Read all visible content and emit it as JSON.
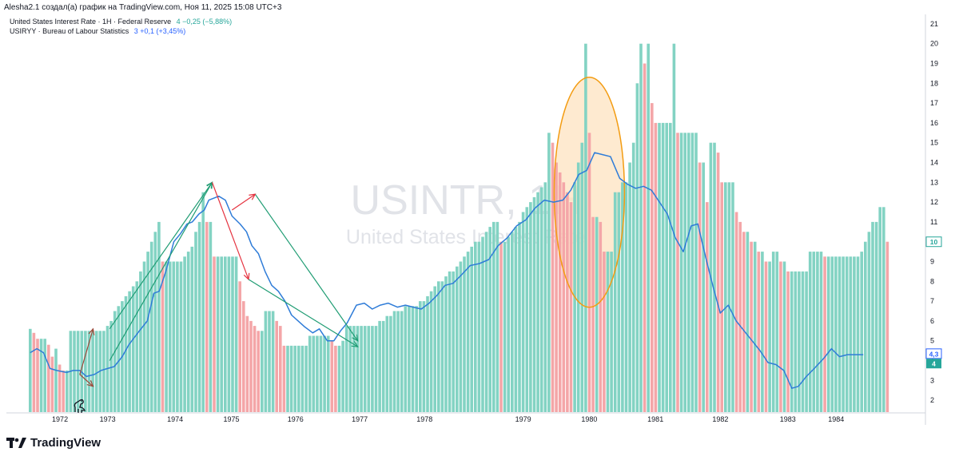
{
  "header": {
    "text": "Alesha2.1 создал(а) график на TradingView.com, Ноя 11, 2025 15:08 UTC+3"
  },
  "legend": [
    {
      "name": "United States Interest Rate · 1H · Federal Reserve",
      "value": "4  −0,25 (−5,88%)"
    },
    {
      "name": "USIRYY · Bureau of Labour Statistics",
      "value": "3  +0,1 (+3,45%)"
    }
  ],
  "watermark": {
    "title": "USINTR, 1H",
    "subtitle": "United States Interest Rate"
  },
  "footer": {
    "brand": "TradingView"
  },
  "colors": {
    "bar_up": "#83d3c3",
    "bar_down": "#f4a6a8",
    "cpi_line": "#2f7cd8",
    "arrow_green": "#1f9c73",
    "arrow_red": "#e5323f",
    "arrow_brown": "#9c4a3a",
    "ellipse_stroke": "#f39c12",
    "ellipse_fill": "#fde3c0"
  },
  "chart_data": {
    "type": "bar",
    "y_axis": {
      "range": [
        1.4,
        21.4
      ],
      "ticks": [
        "2",
        "3",
        "4",
        "5",
        "6",
        "7",
        "8",
        "9",
        "10",
        "11",
        "12",
        "13",
        "14",
        "15",
        "16",
        "17",
        "18",
        "19",
        "20",
        "21"
      ]
    },
    "x_axis": {
      "range": [
        1971.19,
        1985.08
      ],
      "ticks": [
        {
          "label": "1972",
          "t": 1972.0
        },
        {
          "label": "1973",
          "t": 1972.72
        },
        {
          "label": "1974",
          "t": 1973.74
        },
        {
          "label": "1975",
          "t": 1974.59
        },
        {
          "label": "1976",
          "t": 1975.56
        },
        {
          "label": "1977",
          "t": 1976.53
        },
        {
          "label": "1978",
          "t": 1977.51
        },
        {
          "label": "1979",
          "t": 1979.0
        },
        {
          "label": "1980",
          "t": 1980.0
        },
        {
          "label": "1981",
          "t": 1981.0
        },
        {
          "label": "1982",
          "t": 1981.98
        },
        {
          "label": "1983",
          "t": 1983.0
        },
        {
          "label": "1984",
          "t": 1983.73
        }
      ]
    },
    "last_values": {
      "rate": "4",
      "cpi": "4,3",
      "rate_prev": "10"
    },
    "rate_series": {
      "name": "United States Interest Rate",
      "t_start": 1971.55,
      "t_step": 0.0556,
      "values": [
        5.6,
        5.4,
        5.1,
        5.1,
        5.1,
        4.8,
        4.2,
        4.6,
        3.8,
        3.5,
        3.5,
        5.5,
        5.5,
        5.5,
        5.5,
        5.5,
        5.5,
        5.5,
        5.5,
        5.5,
        5.5,
        5.75,
        6.0,
        6.5,
        6.75,
        7.0,
        7.25,
        7.5,
        7.75,
        8.0,
        8.5,
        9.0,
        9.5,
        10.0,
        10.5,
        11.0,
        9.0,
        9.0,
        9.0,
        9.0,
        9.0,
        9.0,
        9.25,
        9.5,
        9.75,
        10.5,
        11.0,
        12.5,
        11.0,
        11.0,
        9.25,
        9.25,
        9.25,
        9.25,
        9.25,
        9.25,
        9.25,
        8.0,
        7.0,
        6.25,
        6.0,
        5.75,
        5.5,
        5.5,
        6.5,
        6.5,
        6.5,
        6.0,
        5.75,
        4.75,
        4.75,
        4.75,
        4.75,
        4.75,
        4.75,
        4.75,
        5.25,
        5.25,
        5.25,
        5.25,
        5.25,
        5.25,
        5.0,
        4.75,
        4.75,
        5.0,
        5.75,
        5.75,
        5.75,
        5.75,
        5.75,
        5.75,
        5.75,
        5.75,
        5.75,
        6.0,
        6.0,
        6.25,
        6.25,
        6.5,
        6.5,
        6.5,
        6.75,
        6.75,
        6.75,
        6.75,
        7.0,
        7.0,
        7.25,
        7.5,
        7.75,
        8.0,
        8.0,
        8.25,
        8.5,
        8.5,
        8.75,
        9.0,
        9.25,
        9.5,
        9.75,
        10.0,
        10.0,
        10.25,
        10.5,
        10.75,
        11.0,
        11.0,
        10.0,
        10.0,
        10.25,
        10.5,
        10.75,
        11.0,
        11.5,
        11.75,
        12.0,
        12.25,
        12.5,
        12.75,
        13.0,
        15.5,
        15.0,
        14.0,
        13.5,
        13.0,
        12.5,
        12.0,
        13.0,
        14.0,
        15.0,
        20.0,
        15.5,
        11.25,
        11.25,
        11.0,
        9.5,
        9.5,
        9.5,
        12.5,
        12.5,
        13.0,
        13.0,
        14.0,
        15.0,
        18.0,
        20.0,
        19.0,
        20.0,
        17.0,
        16.0,
        16.0,
        16.0,
        16.0,
        16.0,
        20.0,
        15.5,
        15.5,
        15.5,
        15.5,
        15.5,
        15.5,
        14.0,
        14.0,
        12.0,
        15.0,
        15.0,
        14.5,
        13.0,
        13.0,
        13.0,
        13.0,
        11.5,
        11.0,
        10.5,
        10.5,
        10.0,
        10.0,
        9.5,
        9.5,
        9.0,
        9.0,
        9.5,
        9.5,
        9.0,
        9.0,
        8.5,
        8.5,
        8.5,
        8.5,
        8.5,
        8.5,
        9.5,
        9.5,
        9.5,
        9.5,
        9.25,
        9.25,
        9.25,
        9.25,
        9.25,
        9.25,
        9.25,
        9.25,
        9.25,
        9.25,
        9.5,
        10.0,
        10.5,
        11.0,
        11.0,
        11.75,
        11.75,
        10.0
      ]
    },
    "cpi_series": {
      "name": "USIRYY",
      "points": [
        [
          1971.55,
          4.4
        ],
        [
          1971.65,
          4.6
        ],
        [
          1971.75,
          4.4
        ],
        [
          1971.85,
          3.6
        ],
        [
          1971.95,
          3.5
        ],
        [
          1972.1,
          3.4
        ],
        [
          1972.2,
          3.5
        ],
        [
          1972.3,
          3.5
        ],
        [
          1972.4,
          3.2
        ],
        [
          1972.52,
          3.3
        ],
        [
          1972.62,
          3.5
        ],
        [
          1972.72,
          3.6
        ],
        [
          1972.82,
          3.7
        ],
        [
          1972.94,
          4.2
        ],
        [
          1973.04,
          4.8
        ],
        [
          1973.2,
          5.5
        ],
        [
          1973.32,
          6.0
        ],
        [
          1973.42,
          7.4
        ],
        [
          1973.5,
          7.5
        ],
        [
          1973.6,
          8.5
        ],
        [
          1973.72,
          10.0
        ],
        [
          1973.82,
          10.4
        ],
        [
          1973.92,
          10.9
        ],
        [
          1974.0,
          11.0
        ],
        [
          1974.1,
          11.4
        ],
        [
          1974.18,
          11.6
        ],
        [
          1974.25,
          12.1
        ],
        [
          1974.4,
          12.3
        ],
        [
          1974.5,
          12.1
        ],
        [
          1974.6,
          11.3
        ],
        [
          1974.72,
          10.9
        ],
        [
          1974.82,
          10.5
        ],
        [
          1974.9,
          9.8
        ],
        [
          1975.0,
          9.4
        ],
        [
          1975.1,
          8.5
        ],
        [
          1975.2,
          7.8
        ],
        [
          1975.3,
          7.5
        ],
        [
          1975.4,
          7.0
        ],
        [
          1975.5,
          6.3
        ],
        [
          1975.6,
          6.0
        ],
        [
          1975.7,
          5.7
        ],
        [
          1975.82,
          5.4
        ],
        [
          1975.92,
          5.6
        ],
        [
          1976.04,
          5.0
        ],
        [
          1976.14,
          5.0
        ],
        [
          1976.24,
          5.5
        ],
        [
          1976.34,
          5.9
        ],
        [
          1976.48,
          6.8
        ],
        [
          1976.6,
          6.9
        ],
        [
          1976.72,
          6.6
        ],
        [
          1976.84,
          6.8
        ],
        [
          1976.96,
          6.9
        ],
        [
          1977.1,
          6.7
        ],
        [
          1977.22,
          6.8
        ],
        [
          1977.34,
          6.7
        ],
        [
          1977.46,
          6.6
        ],
        [
          1977.58,
          6.9
        ],
        [
          1977.7,
          7.3
        ],
        [
          1977.82,
          7.8
        ],
        [
          1977.94,
          7.9
        ],
        [
          1978.06,
          8.3
        ],
        [
          1978.2,
          8.8
        ],
        [
          1978.34,
          8.9
        ],
        [
          1978.48,
          9.1
        ],
        [
          1978.62,
          9.8
        ],
        [
          1978.76,
          10.2
        ],
        [
          1978.9,
          10.8
        ],
        [
          1979.04,
          11.1
        ],
        [
          1979.18,
          11.7
        ],
        [
          1979.32,
          12.1
        ],
        [
          1979.46,
          12.0
        ],
        [
          1979.6,
          12.1
        ],
        [
          1979.72,
          12.6
        ],
        [
          1979.84,
          13.4
        ],
        [
          1979.96,
          13.6
        ],
        [
          1980.08,
          14.5
        ],
        [
          1980.2,
          14.4
        ],
        [
          1980.32,
          14.3
        ],
        [
          1980.46,
          13.2
        ],
        [
          1980.58,
          12.9
        ],
        [
          1980.7,
          12.7
        ],
        [
          1980.82,
          12.8
        ],
        [
          1980.94,
          12.6
        ],
        [
          1981.06,
          12.0
        ],
        [
          1981.18,
          11.4
        ],
        [
          1981.3,
          10.2
        ],
        [
          1981.42,
          9.5
        ],
        [
          1981.54,
          10.8
        ],
        [
          1981.64,
          10.9
        ],
        [
          1981.76,
          9.2
        ],
        [
          1981.88,
          7.6
        ],
        [
          1981.98,
          6.4
        ],
        [
          1982.1,
          6.8
        ],
        [
          1982.22,
          6.0
        ],
        [
          1982.34,
          5.5
        ],
        [
          1982.46,
          5.0
        ],
        [
          1982.58,
          4.5
        ],
        [
          1982.7,
          3.9
        ],
        [
          1982.82,
          3.8
        ],
        [
          1982.94,
          3.5
        ],
        [
          1983.06,
          2.6
        ],
        [
          1983.16,
          2.7
        ],
        [
          1983.28,
          3.2
        ],
        [
          1983.4,
          3.6
        ],
        [
          1983.54,
          4.1
        ],
        [
          1983.66,
          4.6
        ],
        [
          1983.78,
          4.2
        ],
        [
          1983.9,
          4.3
        ],
        [
          1984.02,
          4.3
        ],
        [
          1984.14,
          4.3
        ]
      ]
    }
  }
}
